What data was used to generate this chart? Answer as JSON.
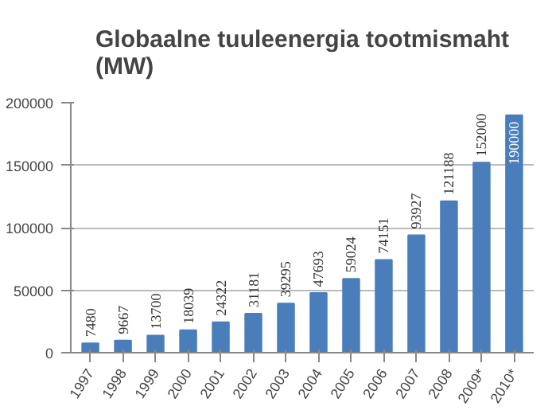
{
  "chart_data": {
    "type": "bar",
    "title": "Globaalne tuuleenergia tootmismaht (MW)",
    "categories": [
      "1997",
      "1998",
      "1999",
      "2000",
      "2001",
      "2002",
      "2003",
      "2004",
      "2005",
      "2006",
      "2007",
      "2008",
      "2009*",
      "2010*"
    ],
    "values": [
      7480,
      9667,
      13700,
      18039,
      24322,
      31181,
      39295,
      47693,
      59024,
      74151,
      93927,
      121188,
      152000,
      190000
    ],
    "color": "#4a7ebb",
    "ylim": [
      0,
      200000
    ],
    "yticks": [
      0,
      50000,
      100000,
      150000,
      200000
    ],
    "grid": "y",
    "data_labels": true
  }
}
